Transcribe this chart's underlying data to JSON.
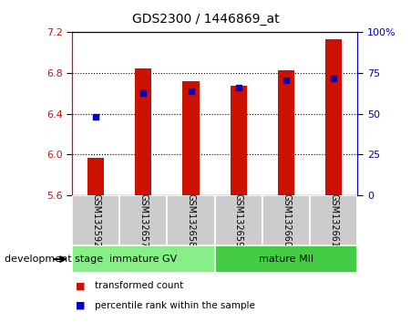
{
  "title": "GDS2300 / 1446869_at",
  "samples": [
    "GSM132592",
    "GSM132657",
    "GSM132658",
    "GSM132659",
    "GSM132660",
    "GSM132661"
  ],
  "red_values": [
    5.97,
    6.85,
    6.72,
    6.68,
    6.83,
    7.13
  ],
  "blue_values": [
    6.37,
    6.6,
    6.62,
    6.66,
    6.73,
    6.75
  ],
  "bar_bottom": 5.6,
  "ylim_left": [
    5.6,
    7.2
  ],
  "ylim_right": [
    0,
    100
  ],
  "yticks_left": [
    5.6,
    6.0,
    6.4,
    6.8,
    7.2
  ],
  "yticks_right": [
    0,
    25,
    50,
    75,
    100
  ],
  "ytick_labels_right": [
    "0",
    "25",
    "50",
    "75",
    "100%"
  ],
  "red_color": "#cc1100",
  "blue_color": "#0000cc",
  "bar_width": 0.35,
  "groups": [
    {
      "label": "immature GV",
      "indices": [
        0,
        1,
        2
      ],
      "color": "#88ee88"
    },
    {
      "label": "mature MII",
      "indices": [
        3,
        4,
        5
      ],
      "color": "#44cc44"
    }
  ],
  "stage_label": "development stage",
  "legend_items": [
    "transformed count",
    "percentile rank within the sample"
  ],
  "plot_bg": "#ffffff",
  "sample_box_bg": "#cccccc",
  "left_axis_color": "#cc1100",
  "right_axis_color": "#0000cc",
  "figsize": [
    4.51,
    3.54
  ],
  "dpi": 100
}
